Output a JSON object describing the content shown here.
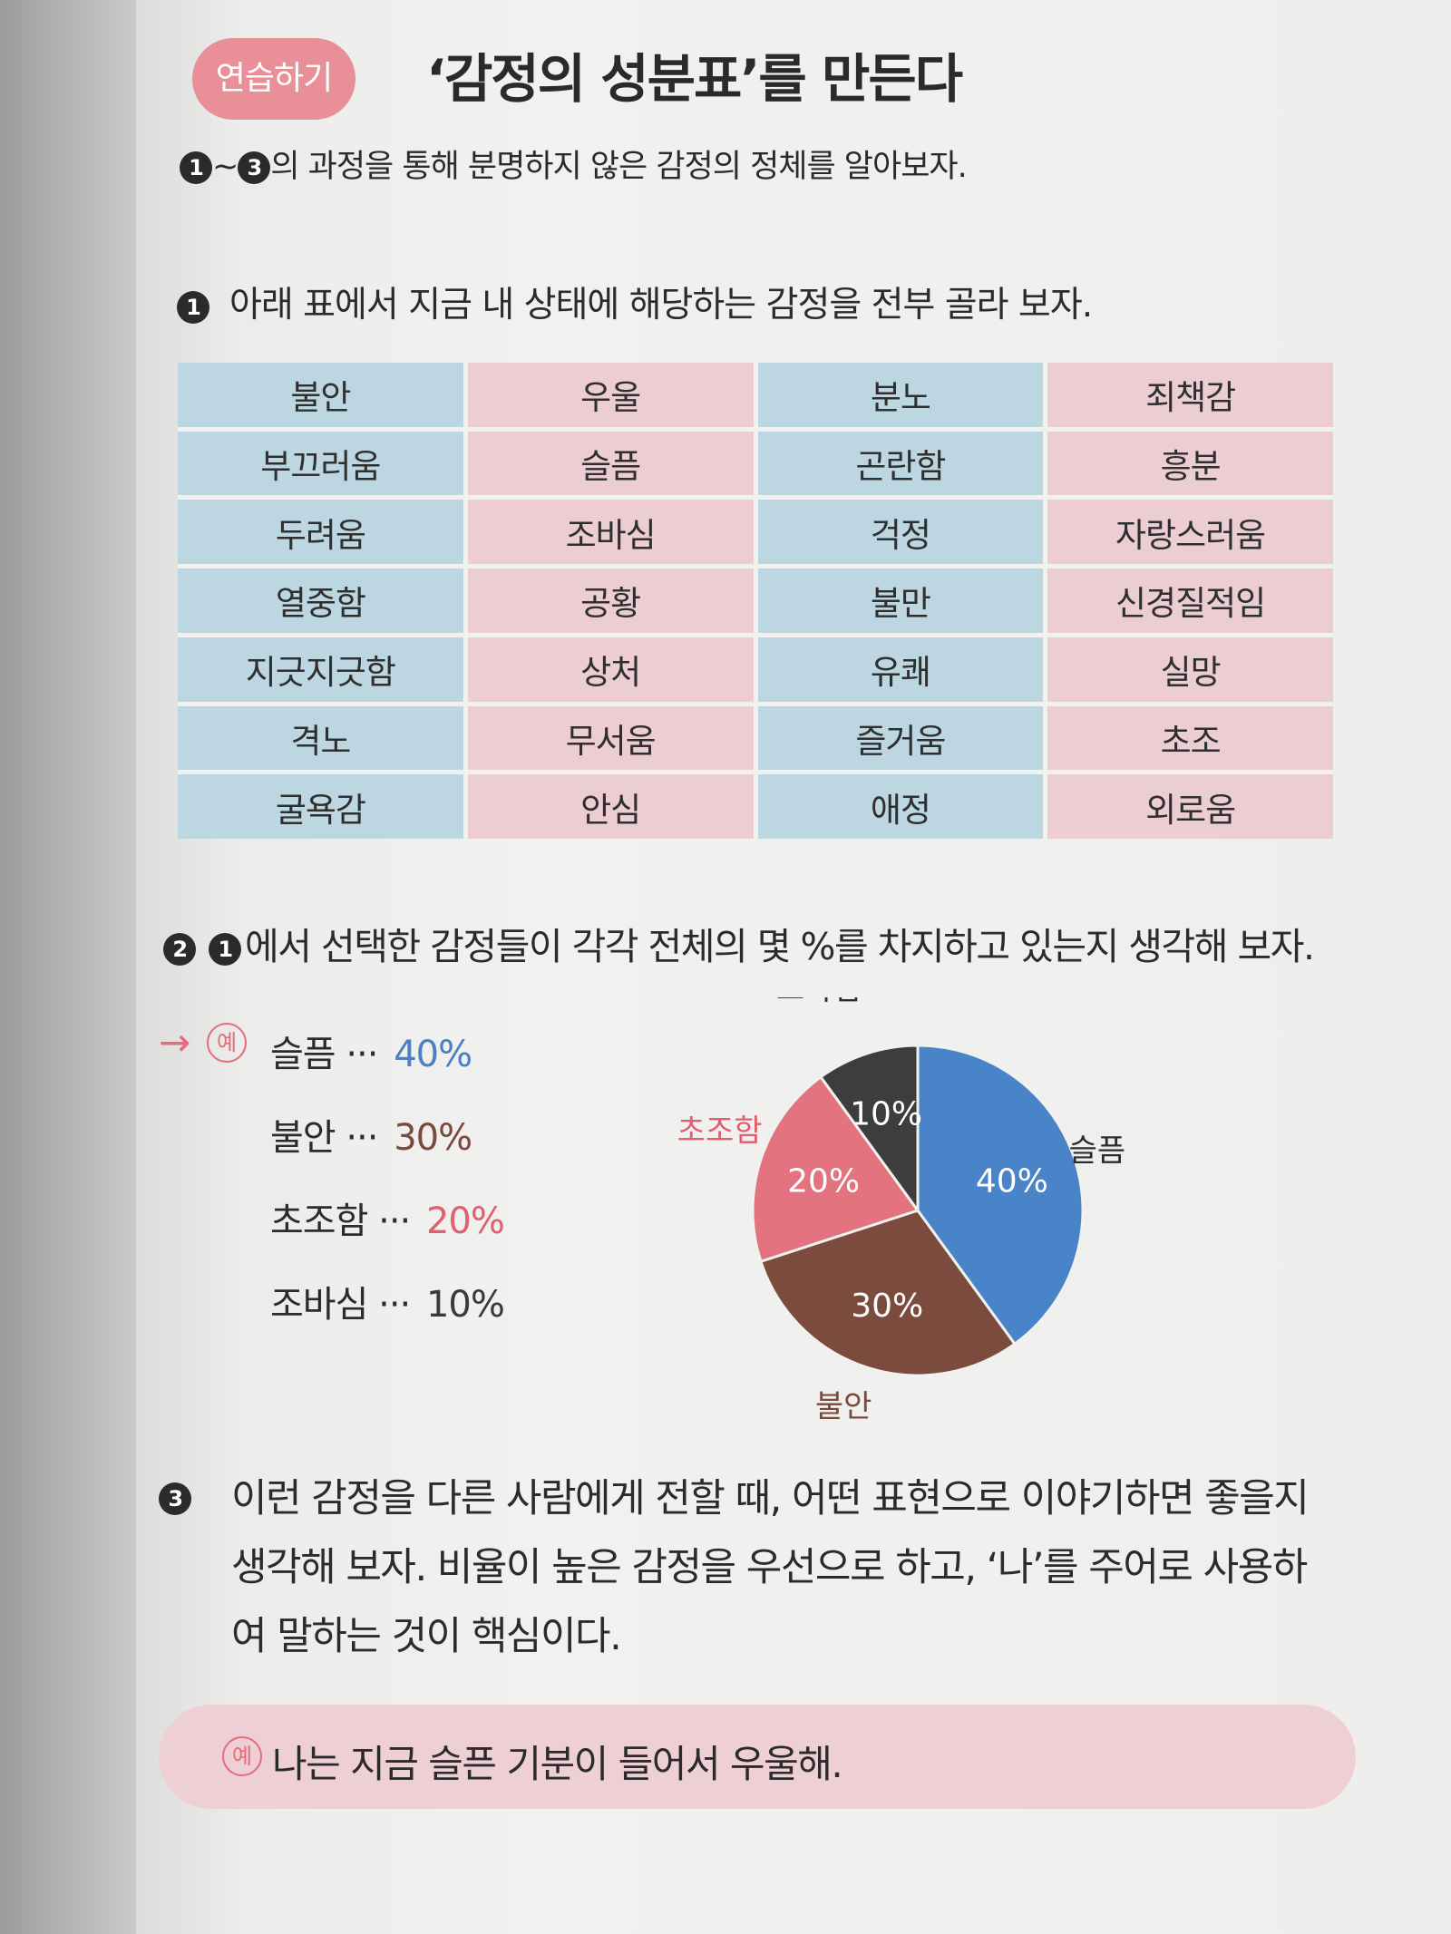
{
  "header": {
    "tag": "연습하기",
    "title": "‘감정의 성분표’를 만든다"
  },
  "intro": {
    "badge_start": "1",
    "range_sep": "~",
    "badge_end": "3",
    "text": "의 과정을 통해 분명하지 않은 감정의 정체를 알아보자."
  },
  "step1": {
    "badge": "1",
    "text": "아래 표에서 지금 내 상태에 해당하는 감정을 전부 골라 보자.",
    "emotions": [
      [
        "불안",
        "우울",
        "분노",
        "죄책감"
      ],
      [
        "부끄러움",
        "슬픔",
        "곤란함",
        "흥분"
      ],
      [
        "두려움",
        "조바심",
        "걱정",
        "자랑스러움"
      ],
      [
        "열중함",
        "공황",
        "불만",
        "신경질적임"
      ],
      [
        "지긋지긋함",
        "상처",
        "유쾌",
        "실망"
      ],
      [
        "격노",
        "무서움",
        "즐거움",
        "초조"
      ],
      [
        "굴욕감",
        "안심",
        "애정",
        "외로움"
      ]
    ]
  },
  "step2": {
    "badge": "2",
    "ref_badge": "1",
    "text": "에서 선택한 감정들이 각각 전체의 몇 %를 차지하고 있는지 생각해 보자.",
    "example_mark": "예",
    "arrow": "→",
    "items": [
      {
        "label": "슬픔 ··· ",
        "pct": "40%",
        "color": "#4a7fc1"
      },
      {
        "label": "불안 ··· ",
        "pct": "30%",
        "color": "#7a4a3d"
      },
      {
        "label": "초조함 ··· ",
        "pct": "20%",
        "color": "#e0606f"
      },
      {
        "label": "조바심 ··· ",
        "pct": "10%",
        "color": "#3a3a3a"
      }
    ]
  },
  "chart_data": {
    "type": "pie",
    "slices": [
      {
        "label": "슬픔",
        "value": 40,
        "display": "40%",
        "color": "#4a84c8",
        "label_color": "#2b2b2b"
      },
      {
        "label": "불안",
        "value": 30,
        "display": "30%",
        "color": "#7b4b3e",
        "label_color": "#7a4a3d"
      },
      {
        "label": "초조함",
        "value": 20,
        "display": "20%",
        "color": "#e3737f",
        "label_color": "#e0606f"
      },
      {
        "label": "조바심",
        "value": 10,
        "display": "10%",
        "color": "#3d3d3d",
        "label_color": "#2b2b2b"
      }
    ]
  },
  "step3": {
    "badge": "3",
    "lines": [
      "이런 감정을 다른 사람에게 전할 때, 어떤 표현으로 이야기하면 좋을지",
      "생각해 보자. 비율이 높은 감정을 우선으로 하고, ‘나’를 주어로 사용하",
      "여 말하는 것이 핵심이다."
    ],
    "example_mark": "예",
    "example_text": "나는 지금 슬픈 기분이 들어서 우울해."
  }
}
